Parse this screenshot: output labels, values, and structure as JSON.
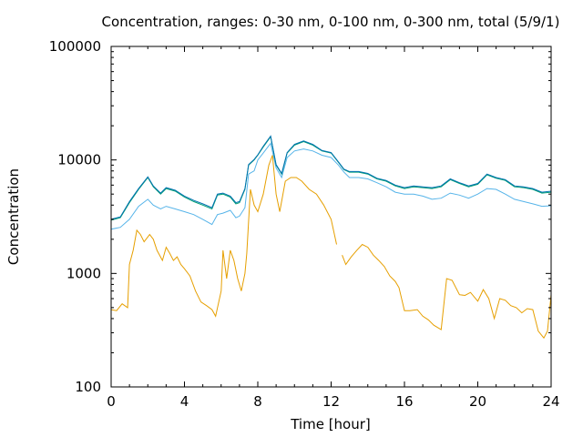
{
  "chart_data": {
    "type": "line",
    "title": "Concentration, ranges: 0-30 nm, 0-100 nm, 0-300 nm, total (5/9/1)",
    "xlabel": "Time [hour]",
    "ylabel": "Concentration",
    "xlim": [
      0,
      24
    ],
    "ylim": [
      100,
      100000
    ],
    "yscale": "log",
    "xticks": [
      0,
      4,
      8,
      12,
      16,
      20,
      24
    ],
    "xtick_labels": [
      "0",
      "4",
      "8",
      "12",
      "16",
      "20",
      "24"
    ],
    "yticks": [
      100,
      1000,
      10000,
      100000
    ],
    "ytick_labels": [
      "100",
      "1000",
      "10000",
      "100000"
    ],
    "grid": false,
    "legend": "none",
    "series": [
      {
        "color": "#e69f00",
        "points": [
          [
            0,
            480
          ],
          [
            0.3,
            470
          ],
          [
            0.6,
            540
          ],
          [
            0.9,
            500
          ],
          [
            1.0,
            1200
          ],
          [
            1.2,
            1600
          ],
          [
            1.4,
            2400
          ],
          [
            1.6,
            2200
          ],
          [
            1.8,
            1900
          ],
          [
            2.1,
            2200
          ],
          [
            2.3,
            2000
          ],
          [
            2.5,
            1600
          ],
          [
            2.8,
            1300
          ],
          [
            3.0,
            1700
          ],
          [
            3.2,
            1500
          ],
          [
            3.4,
            1300
          ],
          [
            3.6,
            1400
          ],
          [
            3.8,
            1200
          ],
          [
            4.0,
            1100
          ],
          [
            4.3,
            950
          ],
          [
            4.6,
            700
          ],
          [
            4.9,
            560
          ],
          [
            5.2,
            520
          ],
          [
            5.5,
            480
          ],
          [
            5.7,
            420
          ],
          [
            6.0,
            700
          ],
          [
            6.1,
            1600
          ],
          [
            6.3,
            900
          ],
          [
            6.5,
            1600
          ],
          [
            6.7,
            1300
          ],
          [
            6.9,
            900
          ],
          [
            7.1,
            700
          ],
          [
            7.3,
            1000
          ],
          [
            7.4,
            1500
          ],
          [
            7.6,
            5500
          ],
          [
            7.8,
            4000
          ],
          [
            8.0,
            3500
          ],
          [
            8.3,
            5000
          ],
          [
            8.6,
            9000
          ],
          [
            8.8,
            11000
          ],
          [
            9.0,
            5000
          ],
          [
            9.2,
            3500
          ],
          [
            9.5,
            6500
          ],
          [
            9.8,
            7000
          ],
          [
            10.1,
            7000
          ],
          [
            10.4,
            6500
          ],
          [
            10.8,
            5500
          ],
          [
            11.2,
            5000
          ],
          [
            11.6,
            4000
          ],
          [
            12.0,
            3000
          ],
          [
            12.3,
            1800
          ]
        ]
      },
      {
        "color": "#e69f00",
        "points": [
          [
            12.6,
            1450
          ],
          [
            12.8,
            1200
          ],
          [
            13.1,
            1400
          ],
          [
            13.4,
            1600
          ],
          [
            13.7,
            1800
          ],
          [
            14.0,
            1700
          ],
          [
            14.3,
            1450
          ],
          [
            14.6,
            1300
          ],
          [
            14.9,
            1150
          ],
          [
            15.2,
            950
          ],
          [
            15.5,
            850
          ],
          [
            15.7,
            750
          ],
          [
            16.0,
            470
          ],
          [
            16.3,
            470
          ],
          [
            16.7,
            480
          ],
          [
            17.0,
            420
          ],
          [
            17.3,
            390
          ],
          [
            17.6,
            350
          ],
          [
            18.0,
            320
          ],
          [
            18.3,
            900
          ],
          [
            18.6,
            870
          ],
          [
            19.0,
            650
          ],
          [
            19.3,
            640
          ],
          [
            19.6,
            680
          ],
          [
            20.0,
            570
          ],
          [
            20.3,
            720
          ],
          [
            20.6,
            600
          ],
          [
            20.9,
            400
          ],
          [
            21.2,
            600
          ],
          [
            21.5,
            580
          ],
          [
            21.8,
            520
          ],
          [
            22.1,
            500
          ],
          [
            22.4,
            450
          ],
          [
            22.7,
            490
          ],
          [
            23.0,
            480
          ],
          [
            23.3,
            310
          ],
          [
            23.6,
            270
          ],
          [
            23.8,
            310
          ],
          [
            24.0,
            650
          ]
        ]
      },
      {
        "color": "#56b4e9",
        "points": [
          [
            0,
            2450
          ],
          [
            0.5,
            2550
          ],
          [
            1.0,
            3000
          ],
          [
            1.5,
            3900
          ],
          [
            2.0,
            4500
          ],
          [
            2.3,
            4000
          ],
          [
            2.7,
            3700
          ],
          [
            3.0,
            3900
          ],
          [
            3.5,
            3700
          ],
          [
            4.0,
            3500
          ],
          [
            4.5,
            3300
          ],
          [
            5.0,
            3000
          ],
          [
            5.5,
            2700
          ],
          [
            5.8,
            3300
          ],
          [
            6.1,
            3400
          ],
          [
            6.5,
            3600
          ],
          [
            6.8,
            3100
          ],
          [
            7.0,
            3200
          ],
          [
            7.3,
            3800
          ],
          [
            7.5,
            7500
          ],
          [
            7.8,
            8000
          ],
          [
            8.0,
            10000
          ],
          [
            8.3,
            11500
          ],
          [
            8.7,
            14000
          ],
          [
            9.0,
            8500
          ],
          [
            9.3,
            7000
          ],
          [
            9.6,
            10500
          ],
          [
            10.0,
            12000
          ],
          [
            10.5,
            12500
          ],
          [
            11.0,
            12000
          ],
          [
            11.5,
            11000
          ],
          [
            12.0,
            10500
          ],
          [
            12.4,
            9000
          ],
          [
            12.7,
            7800
          ],
          [
            13.0,
            7000
          ],
          [
            13.5,
            7000
          ],
          [
            14.0,
            6800
          ],
          [
            14.5,
            6300
          ],
          [
            15.0,
            5800
          ],
          [
            15.5,
            5200
          ],
          [
            16.0,
            5000
          ],
          [
            16.5,
            5000
          ],
          [
            17.0,
            4800
          ],
          [
            17.5,
            4500
          ],
          [
            18.0,
            4600
          ],
          [
            18.5,
            5100
          ],
          [
            19.0,
            4900
          ],
          [
            19.5,
            4600
          ],
          [
            20.0,
            5000
          ],
          [
            20.5,
            5600
          ],
          [
            21.0,
            5500
          ],
          [
            21.5,
            5000
          ],
          [
            22.0,
            4500
          ],
          [
            22.5,
            4300
          ],
          [
            23.0,
            4100
          ],
          [
            23.5,
            3900
          ],
          [
            24.0,
            3950
          ]
        ]
      },
      {
        "color": "#009e73",
        "points": [
          [
            0,
            2950
          ],
          [
            0.5,
            3100
          ],
          [
            1.0,
            4200
          ],
          [
            1.5,
            5500
          ],
          [
            2.0,
            7000
          ],
          [
            2.3,
            5800
          ],
          [
            2.7,
            5000
          ],
          [
            3.0,
            5600
          ],
          [
            3.5,
            5300
          ],
          [
            4.0,
            4700
          ],
          [
            4.5,
            4300
          ],
          [
            5.0,
            4000
          ],
          [
            5.5,
            3700
          ],
          [
            5.8,
            4900
          ],
          [
            6.1,
            5000
          ],
          [
            6.5,
            4700
          ],
          [
            6.8,
            4100
          ],
          [
            7.0,
            4200
          ],
          [
            7.3,
            5500
          ],
          [
            7.5,
            9000
          ],
          [
            7.8,
            10000
          ],
          [
            8.0,
            11000
          ],
          [
            8.3,
            13000
          ],
          [
            8.7,
            16000
          ],
          [
            9.0,
            9000
          ],
          [
            9.3,
            7500
          ],
          [
            9.6,
            11500
          ],
          [
            10.0,
            13500
          ],
          [
            10.5,
            14500
          ],
          [
            11.0,
            13500
          ],
          [
            11.5,
            12000
          ],
          [
            12.0,
            11500
          ],
          [
            12.4,
            9500
          ],
          [
            12.7,
            8200
          ],
          [
            13.0,
            7800
          ],
          [
            13.5,
            7800
          ],
          [
            14.0,
            7500
          ],
          [
            14.5,
            6800
          ],
          [
            15.0,
            6500
          ],
          [
            15.5,
            5900
          ],
          [
            16.0,
            5600
          ],
          [
            16.5,
            5800
          ],
          [
            17.0,
            5700
          ],
          [
            17.5,
            5600
          ],
          [
            18.0,
            5800
          ],
          [
            18.5,
            6700
          ],
          [
            19.0,
            6200
          ],
          [
            19.5,
            5800
          ],
          [
            20.0,
            6100
          ],
          [
            20.5,
            7400
          ],
          [
            21.0,
            6900
          ],
          [
            21.5,
            6600
          ],
          [
            22.0,
            5800
          ],
          [
            22.5,
            5700
          ],
          [
            23.0,
            5500
          ],
          [
            23.5,
            5100
          ],
          [
            24.0,
            5200
          ]
        ]
      },
      {
        "color": "#0072b2",
        "points": [
          [
            0,
            3000
          ],
          [
            0.5,
            3150
          ],
          [
            1.0,
            4300
          ],
          [
            1.5,
            5600
          ],
          [
            2.0,
            7100
          ],
          [
            2.3,
            5900
          ],
          [
            2.7,
            5100
          ],
          [
            3.0,
            5700
          ],
          [
            3.5,
            5400
          ],
          [
            4.0,
            4800
          ],
          [
            4.5,
            4400
          ],
          [
            5.0,
            4100
          ],
          [
            5.5,
            3800
          ],
          [
            5.8,
            5000
          ],
          [
            6.1,
            5100
          ],
          [
            6.5,
            4800
          ],
          [
            6.8,
            4200
          ],
          [
            7.0,
            4300
          ],
          [
            7.3,
            5600
          ],
          [
            7.5,
            9100
          ],
          [
            7.8,
            10100
          ],
          [
            8.0,
            11100
          ],
          [
            8.3,
            13200
          ],
          [
            8.7,
            16200
          ],
          [
            9.0,
            9100
          ],
          [
            9.3,
            7600
          ],
          [
            9.6,
            11600
          ],
          [
            10.0,
            13700
          ],
          [
            10.5,
            14700
          ],
          [
            11.0,
            13700
          ],
          [
            11.5,
            12100
          ],
          [
            12.0,
            11600
          ],
          [
            12.4,
            9600
          ],
          [
            12.7,
            8300
          ],
          [
            13.0,
            7900
          ],
          [
            13.5,
            7900
          ],
          [
            14.0,
            7600
          ],
          [
            14.5,
            6900
          ],
          [
            15.0,
            6600
          ],
          [
            15.5,
            6000
          ],
          [
            16.0,
            5700
          ],
          [
            16.5,
            5900
          ],
          [
            17.0,
            5800
          ],
          [
            17.5,
            5700
          ],
          [
            18.0,
            5900
          ],
          [
            18.5,
            6800
          ],
          [
            19.0,
            6300
          ],
          [
            19.5,
            5900
          ],
          [
            20.0,
            6200
          ],
          [
            20.5,
            7500
          ],
          [
            21.0,
            7000
          ],
          [
            21.5,
            6700
          ],
          [
            22.0,
            5900
          ],
          [
            22.5,
            5800
          ],
          [
            23.0,
            5600
          ],
          [
            23.5,
            5200
          ],
          [
            24.0,
            5300
          ]
        ]
      }
    ]
  }
}
